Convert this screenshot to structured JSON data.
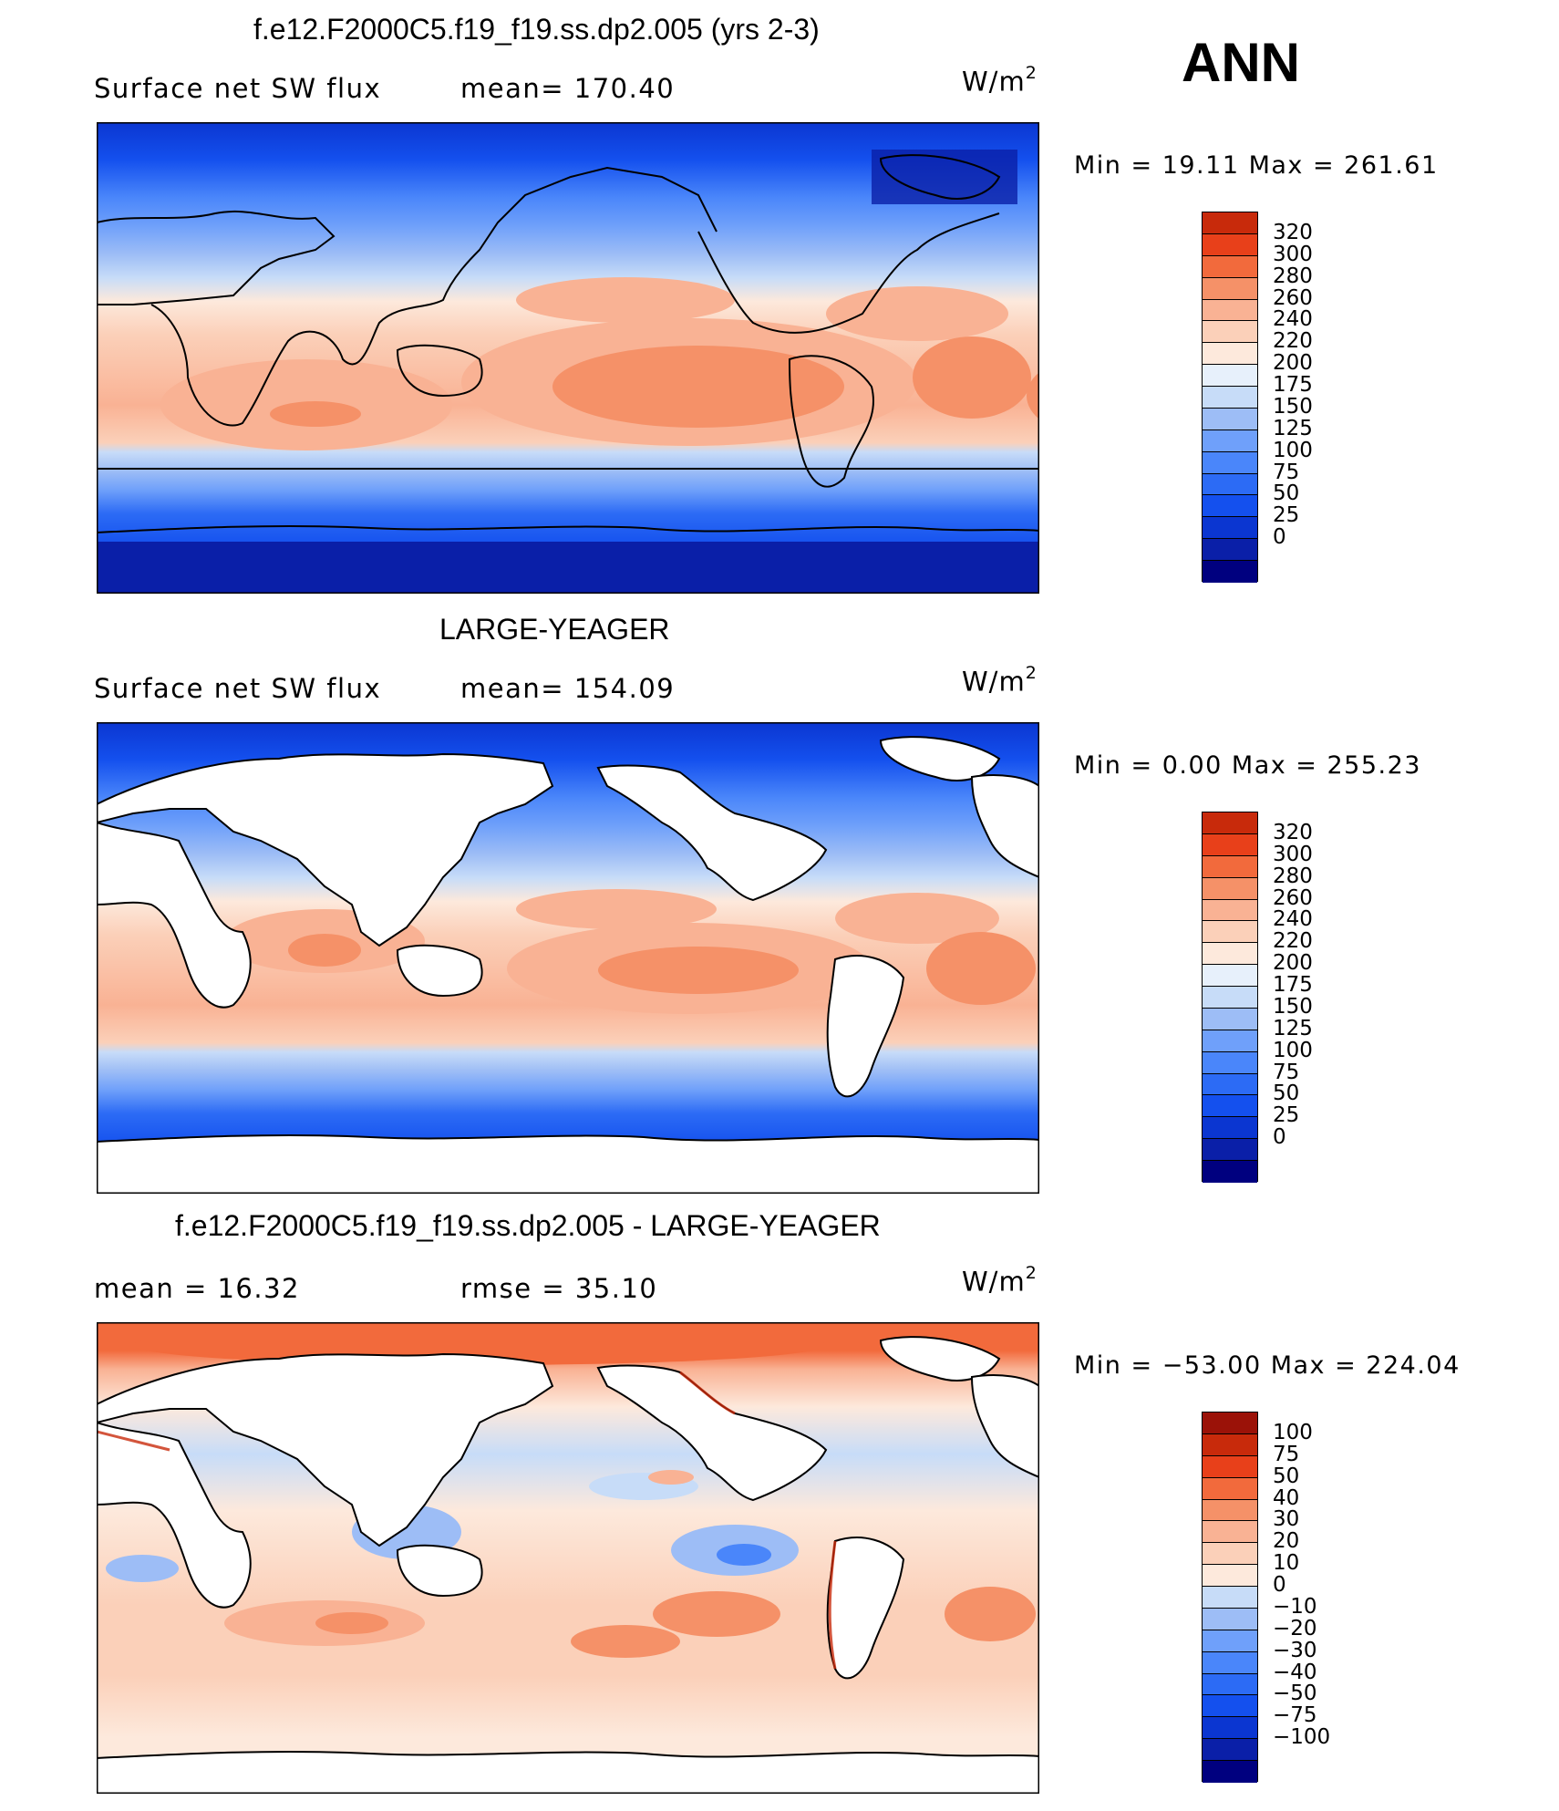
{
  "season": "ANN",
  "colors": {
    "full": [
      "#00007f",
      "#0a1fa8",
      "#0b36d1",
      "#1450ee",
      "#2c6bf5",
      "#4a86fa",
      "#6fa0fa",
      "#9dbdf6",
      "#c7dcf8",
      "#e7f0fb",
      "#fde9dc",
      "#fbd0b9",
      "#f9b294",
      "#f59168",
      "#f26a3c",
      "#e8401a",
      "#c82a0b",
      "#9b1208",
      "#6f0404"
    ],
    "diff": [
      "#00007f",
      "#0a1fa8",
      "#0b36d1",
      "#1450ee",
      "#2c6bf5",
      "#4a86fa",
      "#6fa0fa",
      "#9dbdf6",
      "#c7dcf8",
      "#fde9dc",
      "#fbd0b9",
      "#f9b294",
      "#f59168",
      "#f26a3c",
      "#e8401a",
      "#c82a0b",
      "#9b1208",
      "#6f0404"
    ],
    "land": "#ffffff",
    "coast": "#000000"
  },
  "panels": [
    {
      "title": "f.e12.F2000C5.f19_f19.ss.dp2.005 (yrs 2-3)",
      "left_label": "Surface net SW flux",
      "mid_label": "mean=  170.40",
      "units": "W/m",
      "units_sup": "2",
      "minmax": "Min =    19.11  Max  =  261.61",
      "colorbar_labels": [
        "320",
        "300",
        "280",
        "260",
        "240",
        "220",
        "200",
        "175",
        "150",
        "125",
        "100",
        "75",
        "50",
        "25",
        "0"
      ]
    },
    {
      "title": "LARGE-YEAGER",
      "left_label": "Surface net SW flux",
      "mid_label": "mean=  154.09",
      "units": "W/m",
      "units_sup": "2",
      "minmax": "Min =     0.00  Max  =  255.23",
      "colorbar_labels": [
        "320",
        "300",
        "280",
        "260",
        "240",
        "220",
        "200",
        "175",
        "150",
        "125",
        "100",
        "75",
        "50",
        "25",
        "0"
      ]
    },
    {
      "title": "f.e12.F2000C5.f19_f19.ss.dp2.005 - LARGE-YEAGER",
      "left_label": "mean  =    16.32",
      "mid_label": "rmse  =    35.10",
      "units": "W/m",
      "units_sup": "2",
      "minmax": "Min  =  −53.00  Max  =  224.04",
      "colorbar_labels": [
        "100",
        "75",
        "50",
        "40",
        "30",
        "20",
        "10",
        "0",
        "−10",
        "−20",
        "−30",
        "−40",
        "−50",
        "−75",
        "−100"
      ]
    }
  ]
}
